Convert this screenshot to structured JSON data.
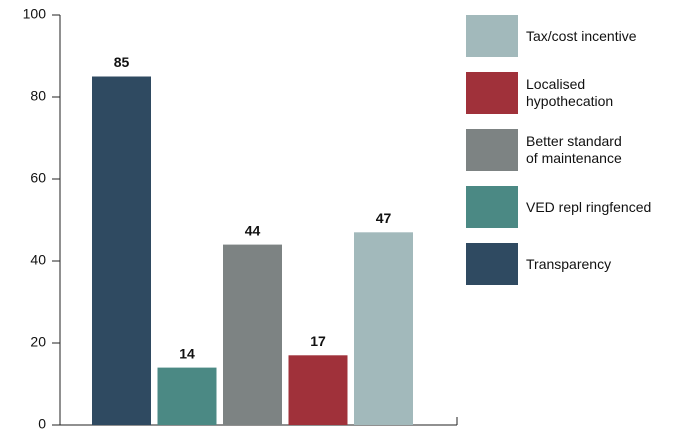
{
  "chart_data": {
    "type": "bar",
    "categories": [
      "Transparency",
      "VED repl ringfenced",
      "Better standard\nof maintenance",
      "Localised\nhypothecation",
      "Tax/cost incentive"
    ],
    "values": [
      85,
      14,
      44,
      17,
      47
    ],
    "colors": [
      "#2f4a61",
      "#4b8984",
      "#7d8383",
      "#a0313a",
      "#a2b9bb"
    ],
    "ylim": [
      0,
      100
    ],
    "yticks": [
      0,
      20,
      40,
      60,
      80,
      100
    ],
    "legend": "right"
  }
}
